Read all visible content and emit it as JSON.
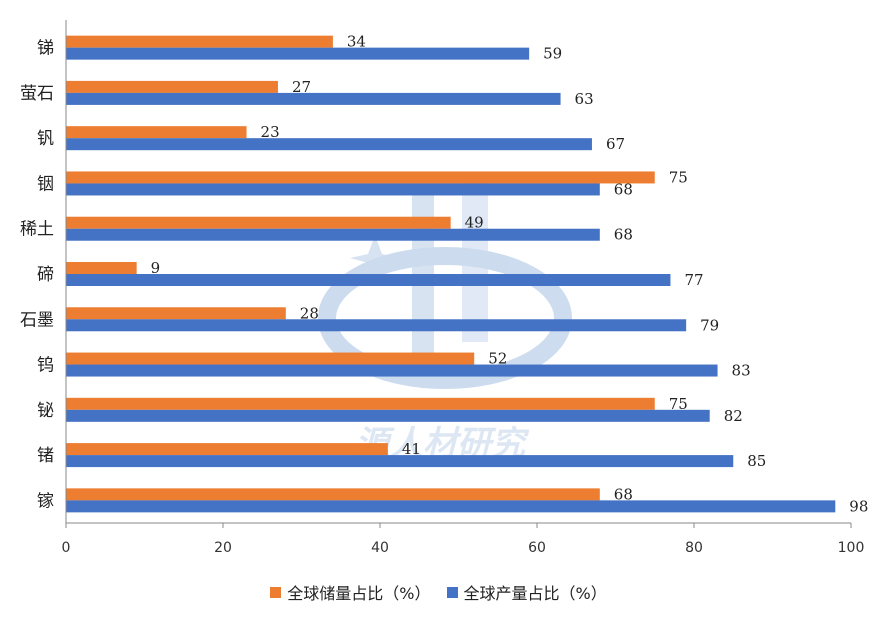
{
  "chart_data": {
    "type": "bar",
    "orientation": "horizontal",
    "categories": [
      "锑",
      "萤石",
      "钒",
      "铟",
      "稀土",
      "碲",
      "石墨",
      "钨",
      "铋",
      "锗",
      "镓"
    ],
    "series": [
      {
        "name": "全球储量占比（%）",
        "color": "#ED7D31",
        "values": [
          34,
          27,
          23,
          75,
          49,
          9,
          28,
          52,
          75,
          41,
          68
        ]
      },
      {
        "name": "全球产量占比（%）",
        "color": "#4472C4",
        "values": [
          59,
          63,
          67,
          68,
          68,
          77,
          79,
          83,
          82,
          85,
          98
        ]
      }
    ],
    "xlim": [
      0,
      100
    ],
    "xticks": [
      0,
      20,
      40,
      60,
      80,
      100
    ],
    "grid": false,
    "legend_position": "bottom"
  },
  "watermark_text": "源人材研究"
}
